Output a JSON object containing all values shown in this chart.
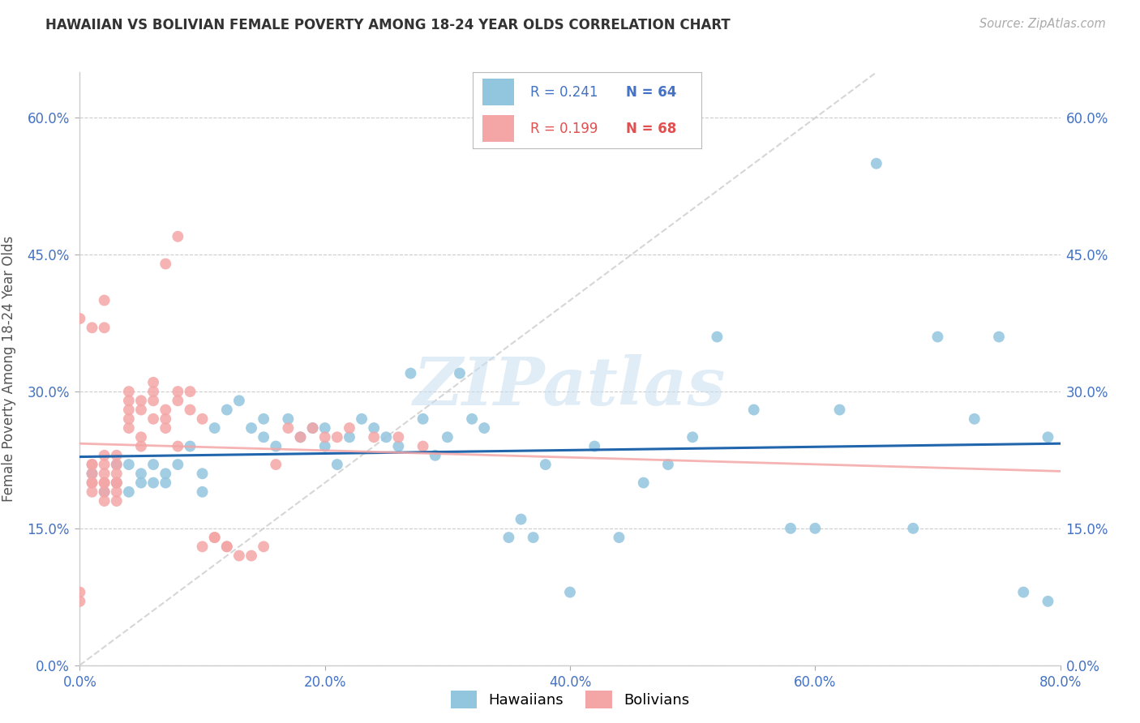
{
  "title": "HAWAIIAN VS BOLIVIAN FEMALE POVERTY AMONG 18-24 YEAR OLDS CORRELATION CHART",
  "source": "Source: ZipAtlas.com",
  "ylabel": "Female Poverty Among 18-24 Year Olds",
  "xlim": [
    0.0,
    0.8
  ],
  "ylim": [
    0.0,
    0.65
  ],
  "x_ticks": [
    0.0,
    0.2,
    0.4,
    0.6,
    0.8
  ],
  "x_tick_labels": [
    "0.0%",
    "20.0%",
    "40.0%",
    "60.0%",
    "80.0%"
  ],
  "y_ticks": [
    0.0,
    0.15,
    0.3,
    0.45,
    0.6
  ],
  "y_tick_labels": [
    "0.0%",
    "15.0%",
    "30.0%",
    "45.0%",
    "60.0%"
  ],
  "hawaiian_color": "#92c5de",
  "bolivian_color": "#f4a6a6",
  "trendline_hawaiian_color": "#2166ac",
  "trendline_bolivian_color": "#f4a6a6",
  "diagonal_color": "#cccccc",
  "watermark": "ZIPatlas",
  "legend_r_hawaiian": "R = 0.241",
  "legend_n_hawaiian": "N = 64",
  "legend_r_bolivian": "R = 0.199",
  "legend_n_bolivian": "N = 68",
  "hawaiian_x": [
    0.01,
    0.02,
    0.03,
    0.03,
    0.04,
    0.04,
    0.05,
    0.05,
    0.06,
    0.06,
    0.07,
    0.07,
    0.08,
    0.09,
    0.1,
    0.1,
    0.11,
    0.12,
    0.13,
    0.14,
    0.15,
    0.15,
    0.16,
    0.17,
    0.18,
    0.19,
    0.2,
    0.2,
    0.21,
    0.22,
    0.23,
    0.24,
    0.25,
    0.26,
    0.27,
    0.28,
    0.29,
    0.3,
    0.31,
    0.32,
    0.33,
    0.35,
    0.36,
    0.37,
    0.38,
    0.4,
    0.42,
    0.44,
    0.46,
    0.48,
    0.5,
    0.52,
    0.55,
    0.58,
    0.6,
    0.62,
    0.65,
    0.68,
    0.7,
    0.73,
    0.75,
    0.77,
    0.79,
    0.79
  ],
  "hawaiian_y": [
    0.21,
    0.19,
    0.22,
    0.2,
    0.22,
    0.19,
    0.21,
    0.2,
    0.2,
    0.22,
    0.21,
    0.2,
    0.22,
    0.24,
    0.21,
    0.19,
    0.26,
    0.28,
    0.29,
    0.26,
    0.27,
    0.25,
    0.24,
    0.27,
    0.25,
    0.26,
    0.24,
    0.26,
    0.22,
    0.25,
    0.27,
    0.26,
    0.25,
    0.24,
    0.32,
    0.27,
    0.23,
    0.25,
    0.32,
    0.27,
    0.26,
    0.14,
    0.16,
    0.14,
    0.22,
    0.08,
    0.24,
    0.14,
    0.2,
    0.22,
    0.25,
    0.36,
    0.28,
    0.15,
    0.15,
    0.28,
    0.55,
    0.15,
    0.36,
    0.27,
    0.36,
    0.08,
    0.07,
    0.25
  ],
  "bolivian_x": [
    0.0,
    0.0,
    0.0,
    0.01,
    0.01,
    0.01,
    0.01,
    0.01,
    0.01,
    0.01,
    0.02,
    0.02,
    0.02,
    0.02,
    0.02,
    0.02,
    0.02,
    0.02,
    0.02,
    0.03,
    0.03,
    0.03,
    0.03,
    0.03,
    0.03,
    0.03,
    0.04,
    0.04,
    0.04,
    0.04,
    0.04,
    0.05,
    0.05,
    0.05,
    0.05,
    0.06,
    0.06,
    0.06,
    0.06,
    0.07,
    0.07,
    0.07,
    0.07,
    0.08,
    0.08,
    0.08,
    0.08,
    0.09,
    0.09,
    0.1,
    0.1,
    0.11,
    0.11,
    0.12,
    0.12,
    0.13,
    0.14,
    0.15,
    0.16,
    0.17,
    0.18,
    0.19,
    0.2,
    0.21,
    0.22,
    0.24,
    0.26,
    0.28
  ],
  "bolivian_y": [
    0.38,
    0.07,
    0.08,
    0.21,
    0.22,
    0.2,
    0.19,
    0.2,
    0.22,
    0.37,
    0.2,
    0.21,
    0.22,
    0.23,
    0.19,
    0.18,
    0.2,
    0.37,
    0.4,
    0.2,
    0.21,
    0.22,
    0.23,
    0.18,
    0.19,
    0.2,
    0.29,
    0.3,
    0.28,
    0.27,
    0.26,
    0.25,
    0.24,
    0.28,
    0.29,
    0.27,
    0.3,
    0.31,
    0.29,
    0.28,
    0.27,
    0.26,
    0.44,
    0.47,
    0.3,
    0.29,
    0.24,
    0.3,
    0.28,
    0.27,
    0.13,
    0.14,
    0.14,
    0.13,
    0.13,
    0.12,
    0.12,
    0.13,
    0.22,
    0.26,
    0.25,
    0.26,
    0.25,
    0.25,
    0.26,
    0.25,
    0.25,
    0.24
  ]
}
